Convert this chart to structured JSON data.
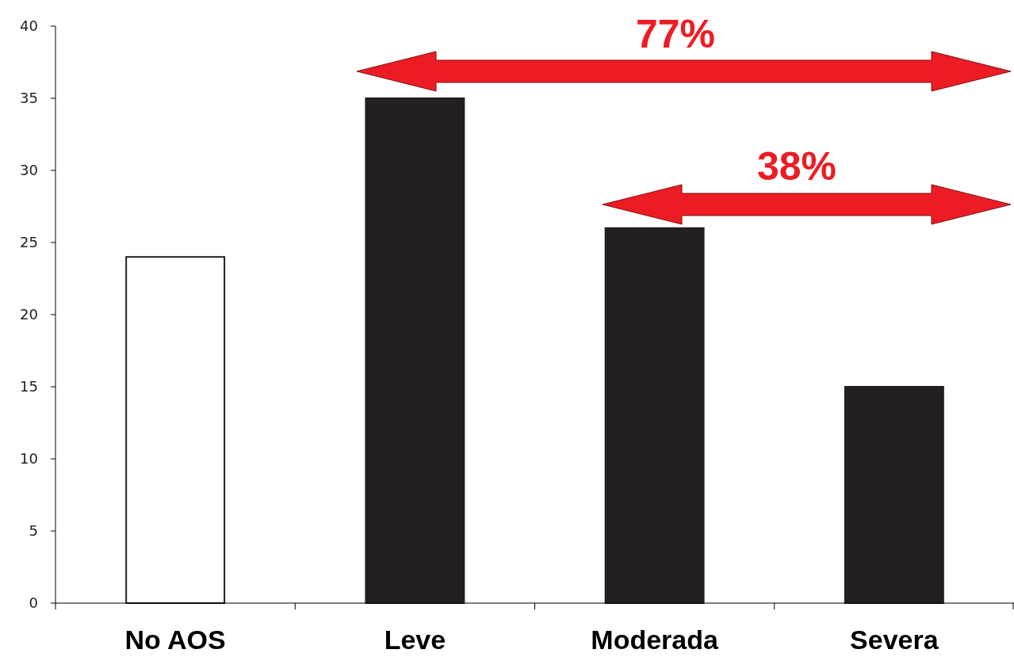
{
  "chart_data": {
    "type": "bar",
    "categories": [
      "No AOS",
      "Leve",
      "Moderada",
      "Severa"
    ],
    "values": [
      24,
      35,
      26,
      15
    ],
    "colors": [
      "#ffffff",
      "#231f20",
      "#231f20",
      "#231f20"
    ],
    "ylim": [
      0,
      40
    ],
    "yticks": [
      0,
      5,
      10,
      15,
      20,
      25,
      30,
      35,
      40
    ],
    "grid": false,
    "annotations": [
      "77%",
      "38%"
    ]
  }
}
